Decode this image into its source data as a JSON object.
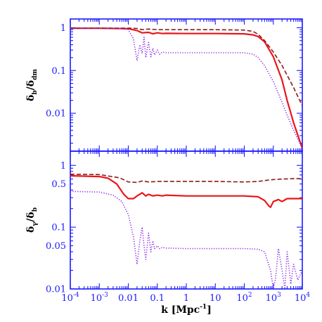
{
  "colors": {
    "axis": "#1a1aff",
    "solid": "#e8161b",
    "dashed": "#8b1a1a",
    "dotted": "#8a2be2"
  },
  "chart_data": [
    {
      "type": "line",
      "scale": {
        "x": "log",
        "y": "log"
      },
      "xlim": [
        0.0001,
        10000
      ],
      "ylim": [
        0.0013,
        1.6
      ],
      "ylabel": {
        "main": "δ",
        "sub1": "b",
        "mid": "/δ",
        "sub2": "dm"
      },
      "yticks": [
        {
          "value": 1,
          "label": "1"
        },
        {
          "value": 0.1,
          "label": "0.1"
        },
        {
          "value": 0.01,
          "label": "0.01"
        }
      ],
      "series": [
        {
          "style": "solid",
          "x": [
            0.0001,
            0.001,
            0.01,
            0.02,
            0.03,
            0.05,
            0.07,
            0.1,
            0.15,
            0.2,
            1,
            10,
            100,
            200,
            300,
            500,
            1000,
            2000,
            3000,
            5000,
            10000
          ],
          "y": [
            0.97,
            0.97,
            0.95,
            0.86,
            0.76,
            0.78,
            0.72,
            0.76,
            0.73,
            0.74,
            0.73,
            0.73,
            0.72,
            0.68,
            0.62,
            0.47,
            0.21,
            0.06,
            0.02,
            0.006,
            0.0015
          ]
        },
        {
          "style": "dashed",
          "x": [
            0.0001,
            0.001,
            0.01,
            0.02,
            0.03,
            0.05,
            0.1,
            1,
            10,
            100,
            200,
            300,
            500,
            1000,
            2000,
            5000,
            10000
          ],
          "y": [
            0.98,
            0.98,
            0.98,
            0.96,
            0.9,
            0.93,
            0.9,
            0.9,
            0.9,
            0.88,
            0.82,
            0.7,
            0.5,
            0.27,
            0.13,
            0.04,
            0.015
          ]
        },
        {
          "style": "dotted",
          "x": [
            0.0001,
            0.001,
            0.005,
            0.01,
            0.015,
            0.02,
            0.025,
            0.03,
            0.035,
            0.04,
            0.05,
            0.06,
            0.07,
            0.08,
            0.1,
            0.12,
            0.15,
            0.2,
            1,
            10,
            100,
            200,
            300,
            500,
            1000,
            2000,
            3000,
            5000,
            10000
          ],
          "y": [
            0.97,
            0.97,
            0.96,
            0.9,
            0.55,
            0.17,
            0.4,
            0.25,
            0.6,
            0.2,
            0.45,
            0.21,
            0.33,
            0.23,
            0.3,
            0.24,
            0.27,
            0.26,
            0.26,
            0.26,
            0.26,
            0.24,
            0.2,
            0.13,
            0.055,
            0.018,
            0.009,
            0.004,
            0.0015
          ]
        }
      ]
    },
    {
      "type": "line",
      "scale": {
        "x": "log",
        "y": "log"
      },
      "xlim": [
        0.0001,
        10000
      ],
      "xlabel": {
        "main": "k  [Mpc",
        "sup": "-1",
        "end": "]"
      },
      "ylim": [
        0.01,
        1.7
      ],
      "ylabel": {
        "main": "δ",
        "sub1": "γ",
        "mid": "/δ",
        "sub2": "b"
      },
      "yticks": [
        {
          "value": 1,
          "label": "1"
        },
        {
          "value": 0.5,
          "label": "0.5"
        },
        {
          "value": 0.1,
          "label": "0.1"
        },
        {
          "value": 0.05,
          "label": "0.05"
        },
        {
          "value": 0.01,
          "label": "0.01"
        }
      ],
      "xticks": [
        {
          "value": 0.0001,
          "base": "10",
          "exp": "-4"
        },
        {
          "value": 0.001,
          "base": "10",
          "exp": "-3"
        },
        {
          "value": 0.01,
          "label": "0.01"
        },
        {
          "value": 0.1,
          "label": "0.1"
        },
        {
          "value": 1,
          "label": "1"
        },
        {
          "value": 10,
          "label": "10"
        },
        {
          "value": 100,
          "base": "10",
          "exp": "2"
        },
        {
          "value": 1000,
          "base": "10",
          "exp": "3"
        },
        {
          "value": 10000,
          "base": "10",
          "exp": "4"
        }
      ],
      "series": [
        {
          "style": "solid",
          "x": [
            0.0001,
            0.001,
            0.002,
            0.004,
            0.007,
            0.01,
            0.015,
            0.02,
            0.03,
            0.04,
            0.05,
            0.07,
            0.1,
            0.15,
            0.2,
            1,
            10,
            100,
            300,
            500,
            700,
            800,
            1000,
            1500,
            2000,
            3000,
            5000,
            10000
          ],
          "y": [
            0.68,
            0.66,
            0.62,
            0.5,
            0.34,
            0.29,
            0.29,
            0.32,
            0.36,
            0.32,
            0.34,
            0.32,
            0.33,
            0.32,
            0.33,
            0.32,
            0.32,
            0.32,
            0.31,
            0.27,
            0.22,
            0.21,
            0.26,
            0.28,
            0.26,
            0.29,
            0.29,
            0.29
          ]
        },
        {
          "style": "dashed",
          "x": [
            0.0001,
            0.001,
            0.005,
            0.01,
            0.02,
            0.03,
            0.05,
            0.1,
            1,
            10,
            100,
            300,
            700,
            1000,
            2000,
            5000,
            10000
          ],
          "y": [
            0.72,
            0.71,
            0.63,
            0.54,
            0.53,
            0.56,
            0.54,
            0.55,
            0.55,
            0.55,
            0.54,
            0.55,
            0.58,
            0.59,
            0.6,
            0.61,
            0.61
          ]
        },
        {
          "style": "dotted",
          "x": [
            0.0001,
            0.001,
            0.003,
            0.006,
            0.01,
            0.015,
            0.02,
            0.025,
            0.03,
            0.035,
            0.04,
            0.05,
            0.06,
            0.07,
            0.08,
            0.1,
            0.12,
            0.15,
            0.2,
            1,
            10,
            100,
            300,
            500,
            800,
            1000,
            1200,
            1500,
            2000,
            2500,
            3000,
            4000,
            5000,
            7000,
            10000
          ],
          "y": [
            0.38,
            0.37,
            0.33,
            0.26,
            0.16,
            0.07,
            0.025,
            0.06,
            0.1,
            0.05,
            0.03,
            0.08,
            0.04,
            0.06,
            0.045,
            0.05,
            0.045,
            0.047,
            0.046,
            0.045,
            0.045,
            0.045,
            0.044,
            0.04,
            0.02,
            0.01,
            0.015,
            0.045,
            0.02,
            0.01,
            0.04,
            0.012,
            0.025,
            0.014,
            0.02
          ]
        }
      ]
    }
  ]
}
